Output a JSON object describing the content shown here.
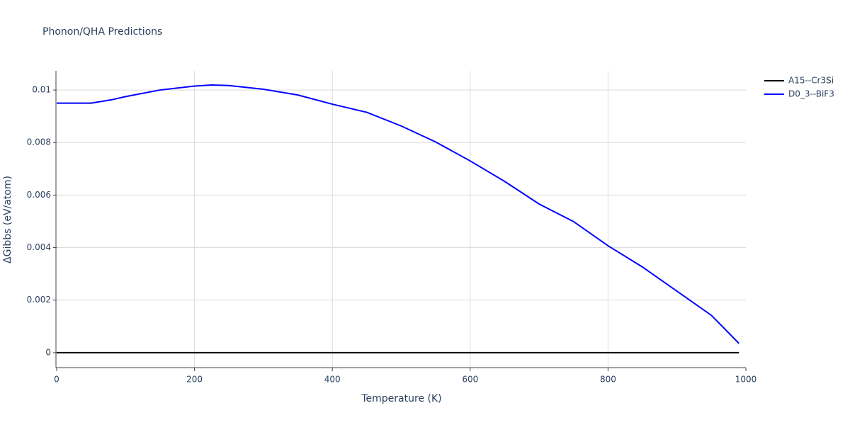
{
  "chart_data": {
    "type": "line",
    "title": "Phonon/QHA Predictions",
    "x_label": "Temperature (K)",
    "y_label": "ΔGibbs (eV/atom)",
    "xlim": [
      0,
      1000
    ],
    "xticks": [
      0,
      200,
      400,
      600,
      800,
      1000
    ],
    "ylim": [
      -0.00057,
      0.01073
    ],
    "yticks": [
      0,
      0.002,
      0.004,
      0.006,
      0.008,
      0.01
    ],
    "grid": true,
    "legend": "top-right",
    "series": [
      {
        "name": "A15--Cr3Si",
        "color": "#000000",
        "x": [
          0,
          990
        ],
        "values": [
          0,
          0
        ]
      },
      {
        "name": "D0_3--BiF3",
        "color": "#0000ff",
        "x": [
          0,
          50,
          80,
          100,
          150,
          200,
          225,
          250,
          300,
          350,
          400,
          450,
          500,
          550,
          600,
          650,
          700,
          750,
          800,
          850,
          900,
          950,
          990
        ],
        "values": [
          0.0095,
          0.0095,
          0.00963,
          0.00975,
          0.01,
          0.01015,
          0.01019,
          0.01017,
          0.01003,
          0.00981,
          0.00946,
          0.00915,
          0.00863,
          0.00802,
          0.0073,
          0.00652,
          0.00566,
          0.00499,
          0.00407,
          0.00326,
          0.00234,
          0.00142,
          0.00035
        ]
      }
    ]
  }
}
